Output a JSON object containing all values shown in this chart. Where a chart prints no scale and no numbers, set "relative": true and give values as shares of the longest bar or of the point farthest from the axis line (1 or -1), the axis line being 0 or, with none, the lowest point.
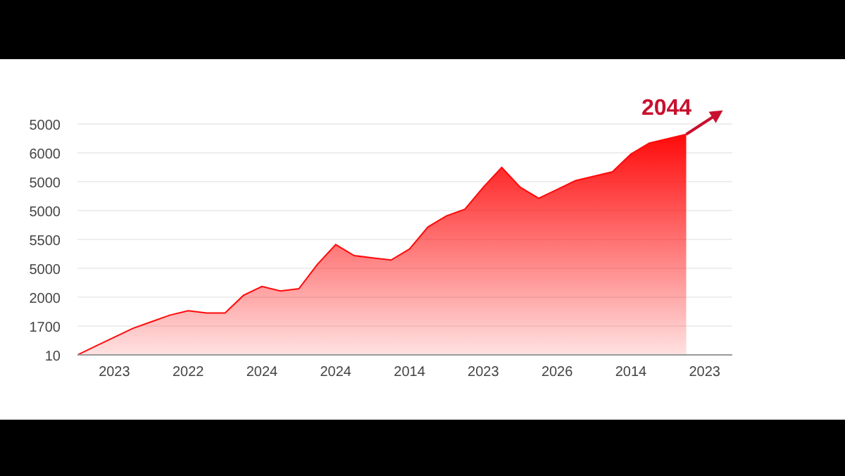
{
  "chart_data": {
    "type": "area",
    "relative": true,
    "categories": [
      null,
      null,
      "2023",
      null,
      null,
      null,
      "2022",
      null,
      null,
      null,
      "2024",
      null,
      null,
      null,
      "2024",
      null,
      null,
      null,
      "2014",
      null,
      null,
      null,
      "2023",
      null,
      null,
      null,
      "2026",
      null,
      null,
      null,
      "2014",
      null,
      null,
      null,
      "2023"
    ],
    "series": [
      {
        "color": "#ff0a0a",
        "values": [
          0,
          0.04,
          0.08,
          0.12,
          0.15,
          0.18,
          0.2,
          0.19,
          0.19,
          0.27,
          0.31,
          0.29,
          0.3,
          0.41,
          0.5,
          0.45,
          0.44,
          0.43,
          0.48,
          0.58,
          0.63,
          0.66,
          0.76,
          0.85,
          0.76,
          0.71,
          0.75,
          0.79,
          0.81,
          0.83,
          0.91,
          0.96,
          0.98,
          1,
          null
        ]
      }
    ],
    "grid": "y",
    "annotations": [
      "5000",
      "6000",
      "5000",
      "5000",
      "5500",
      "5000",
      "2000",
      "1700",
      "10",
      "2044"
    ]
  }
}
